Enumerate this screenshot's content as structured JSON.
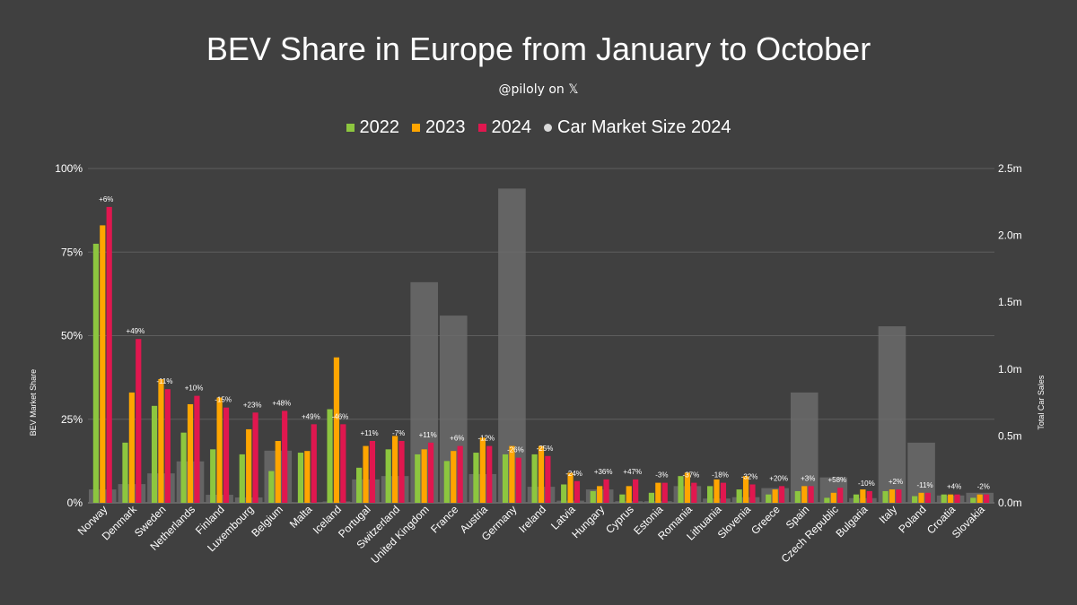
{
  "chart_data": {
    "type": "bar",
    "title": "BEV Share in Europe from January to October",
    "subtitle": "@piloly on 𝕏",
    "ylabel": "BEV Market Share",
    "y2label": "Total Car Sales",
    "ylim": [
      0,
      100
    ],
    "y2lim": [
      0,
      2500000
    ],
    "yticks": [
      "0%",
      "25%",
      "50%",
      "75%",
      "100%"
    ],
    "y2ticks": [
      "0.0m",
      "0.5m",
      "1.0m",
      "1.5m",
      "2.0m",
      "2.5m"
    ],
    "legend_placement": "top",
    "grid": true,
    "categories": [
      "Norway",
      "Denmark",
      "Sweden",
      "Netherlands",
      "Finland",
      "Luxembourg",
      "Belgium",
      "Malta",
      "Iceland",
      "Portugal",
      "Switzerland",
      "United Kingdom",
      "France",
      "Austria",
      "Germany",
      "Ireland",
      "Latvia",
      "Hungary",
      "Cyprus",
      "Estonia",
      "Romania",
      "Lithuania",
      "Slovenia",
      "Greece",
      "Spain",
      "Czech Republic",
      "Bulgaria",
      "Italy",
      "Poland",
      "Croatia",
      "Slovakia"
    ],
    "series": [
      {
        "name": "2022",
        "color": "#8dc63f",
        "values": [
          77.5,
          18,
          29,
          21,
          16,
          14.5,
          9.5,
          15,
          28,
          10.5,
          16,
          14.5,
          12.5,
          15,
          14.5,
          14.5,
          5.5,
          3.5,
          2.5,
          3,
          8,
          5,
          4,
          2.5,
          3.5,
          1.5,
          2.5,
          3.5,
          2,
          2.5,
          1.5
        ]
      },
      {
        "name": "2023",
        "color": "#ffa500",
        "values": [
          83,
          33,
          37,
          29.5,
          31.5,
          22,
          18.5,
          15.5,
          43.5,
          17,
          20,
          16,
          15.5,
          19.5,
          17,
          17,
          9,
          5,
          5,
          6,
          9,
          7,
          8,
          4,
          5,
          3,
          4,
          4,
          3,
          2.5,
          2.5
        ]
      },
      {
        "name": "2024",
        "color": "#e0174f",
        "values": [
          88.5,
          49,
          34,
          32,
          28.5,
          27,
          27.5,
          23.5,
          23.5,
          18.5,
          18.5,
          18,
          17,
          17,
          13.5,
          14,
          6.5,
          7,
          7,
          6,
          6,
          6,
          5.5,
          5,
          5,
          4.5,
          3.5,
          4,
          3,
          2.5,
          2.5
        ]
      },
      {
        "name": "Car Market Size 2024",
        "color": "#6b6b6b",
        "axis": "right",
        "values": [
          100000,
          140000,
          220000,
          310000,
          60000,
          40000,
          390000,
          5000,
          10000,
          175000,
          200000,
          1650000,
          1400000,
          215000,
          2350000,
          120000,
          16000,
          100000,
          12000,
          12000,
          125000,
          32000,
          42000,
          110000,
          825000,
          190000,
          35000,
          1320000,
          450000,
          55000,
          75000
        ]
      }
    ],
    "annotations": [
      "+6%",
      "+49%",
      "-11%",
      "+10%",
      "-15%",
      "+23%",
      "+48%",
      "+49%",
      "-46%",
      "+11%",
      "-7%",
      "+11%",
      "+6%",
      "-12%",
      "-26%",
      "-25%",
      "-24%",
      "+36%",
      "+47%",
      "-3%",
      "-37%",
      "-18%",
      "-32%",
      "+20%",
      "+3%",
      "+58%",
      "-10%",
      "+2%",
      "-11%",
      "+4%",
      "-2%"
    ]
  }
}
